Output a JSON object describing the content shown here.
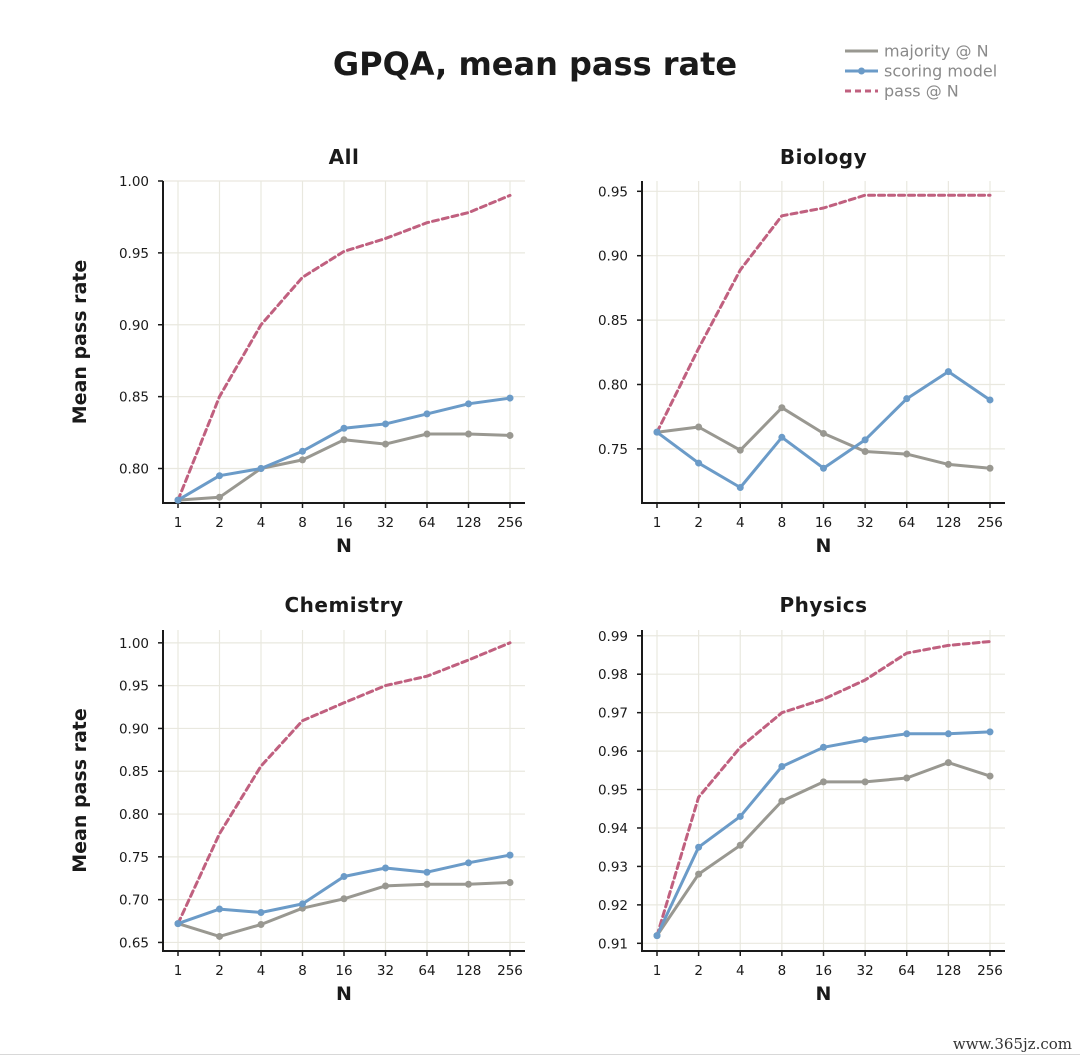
{
  "title": "GPQA, mean pass rate",
  "legend": [
    {
      "label": "majority @ N",
      "color": "#999891",
      "style": "solid",
      "marker": false
    },
    {
      "label": "scoring model",
      "color": "#6b9bc8",
      "style": "solid",
      "marker": true
    },
    {
      "label": "pass @ N",
      "color": "#c0607f",
      "style": "dashed",
      "marker": false
    }
  ],
  "watermark": "www.365jz.com",
  "chart_data": [
    {
      "type": "line",
      "title": "All",
      "xlabel": "N",
      "ylabel": "Mean pass rate",
      "x": [
        1,
        2,
        4,
        8,
        16,
        32,
        64,
        128,
        256
      ],
      "x_tick_labels": [
        "1",
        "2",
        "4",
        "8",
        "16",
        "32",
        "64",
        "128",
        "256"
      ],
      "ylim": [
        0.776,
        1.0
      ],
      "yticks": [
        0.8,
        0.85,
        0.9,
        0.95,
        1.0
      ],
      "ytick_labels": [
        "0.80",
        "0.85",
        "0.90",
        "0.95",
        "1.00"
      ],
      "grid": true,
      "series": [
        {
          "name": "majority @ N",
          "values": [
            0.778,
            0.78,
            0.8,
            0.806,
            0.82,
            0.817,
            0.824,
            0.824,
            0.823
          ]
        },
        {
          "name": "scoring model",
          "values": [
            0.778,
            0.795,
            0.8,
            0.812,
            0.828,
            0.831,
            0.838,
            0.845,
            0.849
          ]
        },
        {
          "name": "pass @ N",
          "values": [
            0.778,
            0.85,
            0.9,
            0.933,
            0.951,
            0.96,
            0.971,
            0.978,
            0.99
          ]
        }
      ]
    },
    {
      "type": "line",
      "title": "Biology",
      "xlabel": "N",
      "ylabel": "",
      "x": [
        1,
        2,
        4,
        8,
        16,
        32,
        64,
        128,
        256
      ],
      "x_tick_labels": [
        "1",
        "2",
        "4",
        "8",
        "16",
        "32",
        "64",
        "128",
        "256"
      ],
      "ylim": [
        0.708,
        0.958
      ],
      "yticks": [
        0.75,
        0.8,
        0.85,
        0.9,
        0.95
      ],
      "ytick_labels": [
        "0.75",
        "0.80",
        "0.85",
        "0.90",
        "0.95"
      ],
      "grid": true,
      "series": [
        {
          "name": "majority @ N",
          "values": [
            0.763,
            0.767,
            0.749,
            0.782,
            0.762,
            0.748,
            0.746,
            0.738,
            0.735
          ]
        },
        {
          "name": "scoring model",
          "values": [
            0.763,
            0.739,
            0.72,
            0.759,
            0.735,
            0.757,
            0.789,
            0.81,
            0.788
          ]
        },
        {
          "name": "pass @ N",
          "values": [
            0.763,
            0.828,
            0.889,
            0.931,
            0.937,
            0.947,
            0.947,
            0.947,
            0.947
          ]
        }
      ]
    },
    {
      "type": "line",
      "title": "Chemistry",
      "xlabel": "N",
      "ylabel": "Mean pass rate",
      "x": [
        1,
        2,
        4,
        8,
        16,
        32,
        64,
        128,
        256
      ],
      "x_tick_labels": [
        "1",
        "2",
        "4",
        "8",
        "16",
        "32",
        "64",
        "128",
        "256"
      ],
      "ylim": [
        0.64,
        1.015
      ],
      "yticks": [
        0.65,
        0.7,
        0.75,
        0.8,
        0.85,
        0.9,
        0.95,
        1.0
      ],
      "ytick_labels": [
        "0.65",
        "0.70",
        "0.75",
        "0.80",
        "0.85",
        "0.90",
        "0.95",
        "1.00"
      ],
      "grid": true,
      "series": [
        {
          "name": "majority @ N",
          "values": [
            0.672,
            0.657,
            0.671,
            0.69,
            0.701,
            0.716,
            0.718,
            0.718,
            0.72
          ]
        },
        {
          "name": "scoring model",
          "values": [
            0.672,
            0.689,
            0.685,
            0.695,
            0.727,
            0.737,
            0.732,
            0.743,
            0.752
          ]
        },
        {
          "name": "pass @ N",
          "values": [
            0.672,
            0.777,
            0.856,
            0.909,
            0.93,
            0.95,
            0.961,
            0.98,
            1.0
          ]
        }
      ]
    },
    {
      "type": "line",
      "title": "Physics",
      "xlabel": "N",
      "ylabel": "",
      "x": [
        1,
        2,
        4,
        8,
        16,
        32,
        64,
        128,
        256
      ],
      "x_tick_labels": [
        "1",
        "2",
        "4",
        "8",
        "16",
        "32",
        "64",
        "128",
        "256"
      ],
      "ylim": [
        0.908,
        0.9915
      ],
      "yticks": [
        0.91,
        0.92,
        0.93,
        0.94,
        0.95,
        0.96,
        0.97,
        0.98,
        0.99
      ],
      "ytick_labels": [
        "0.91",
        "0.92",
        "0.93",
        "0.94",
        "0.95",
        "0.96",
        "0.97",
        "0.98",
        "0.99"
      ],
      "grid": true,
      "series": [
        {
          "name": "majority @ N",
          "values": [
            0.912,
            0.928,
            0.9355,
            0.947,
            0.952,
            0.952,
            0.953,
            0.957,
            0.9535
          ]
        },
        {
          "name": "scoring model",
          "values": [
            0.912,
            0.935,
            0.943,
            0.956,
            0.961,
            0.963,
            0.9645,
            0.9645,
            0.965
          ]
        },
        {
          "name": "pass @ N",
          "values": [
            0.912,
            0.948,
            0.961,
            0.97,
            0.9735,
            0.9785,
            0.9855,
            0.9875,
            0.9885
          ]
        }
      ]
    }
  ]
}
